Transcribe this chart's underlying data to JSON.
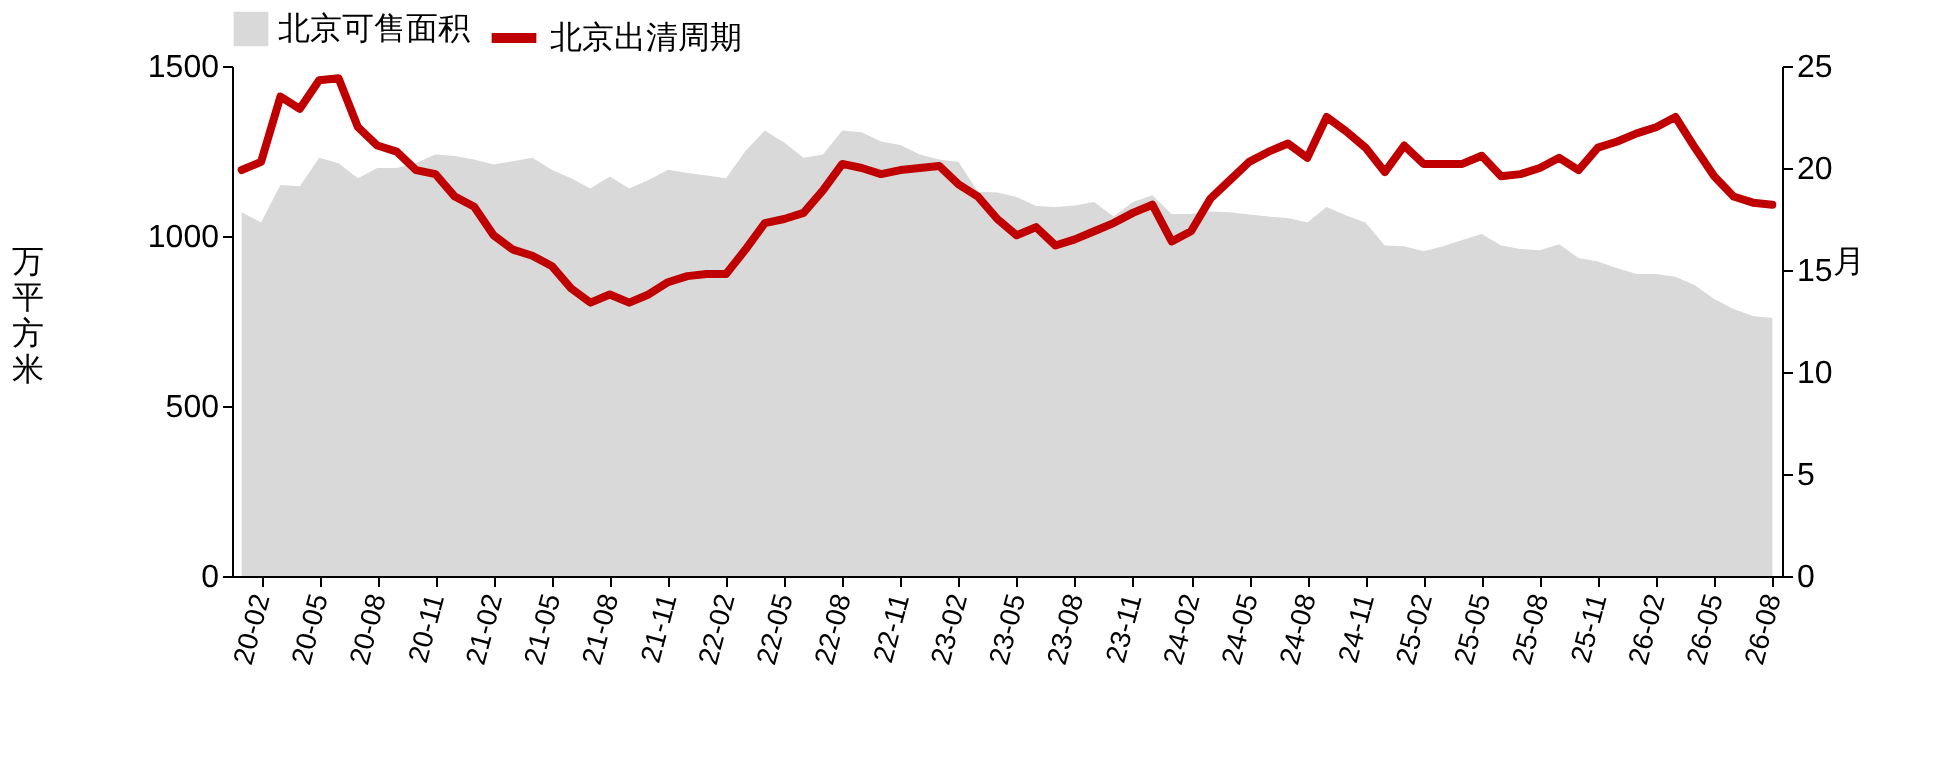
{
  "chart_data": {
    "type": "area",
    "categories": [
      null,
      "20-02",
      null,
      null,
      "20-05",
      null,
      null,
      "20-08",
      null,
      null,
      "20-11",
      null,
      null,
      "21-02",
      null,
      null,
      "21-05",
      null,
      null,
      "21-08",
      null,
      null,
      "21-11",
      null,
      null,
      "22-02",
      null,
      null,
      "22-05",
      null,
      null,
      "22-08",
      null,
      null,
      "22-11",
      null,
      null,
      "23-02",
      null,
      null,
      "23-05",
      null,
      null,
      "23-08",
      null,
      null,
      "23-11",
      null,
      null,
      "24-02",
      null,
      null,
      "24-05",
      null,
      null,
      "24-08",
      null,
      null,
      "24-11",
      null,
      null,
      "25-02",
      null,
      null,
      "25-05",
      null,
      null,
      "25-08",
      null,
      null,
      "25-11",
      null,
      null,
      "26-02",
      null,
      null,
      "26-05",
      null,
      null,
      "26-08"
    ],
    "series": [
      {
        "name": "北京可售面积",
        "color": "#d9d9d9",
        "values": [
          1070,
          1040,
          1150,
          1146,
          1230,
          1214,
          1170,
          1200,
          1200,
          1215,
          1240,
          1235,
          1225,
          1210,
          1220,
          1230,
          1195,
          1170,
          1140,
          1175,
          1140,
          1165,
          1195,
          1185,
          1178,
          1170,
          1250,
          1310,
          1275,
          1230,
          1240,
          1310,
          1305,
          1278,
          1268,
          1240,
          1225,
          1218,
          1130,
          1128,
          1115,
          1088,
          1085,
          1090,
          1100,
          1057,
          1100,
          1120,
          1065,
          1065,
          1072,
          1070,
          1063,
          1057,
          1053,
          1040,
          1085,
          1060,
          1040,
          972,
          970,
          955,
          970,
          988,
          1006,
          972,
          962,
          958,
          976,
          935,
          925,
          905,
          888,
          888,
          880,
          855,
          815,
          785,
          765,
          759
        ]
      },
      {
        "name": "北京出清周期",
        "type": "line",
        "axis": "y2",
        "color": "#c00000",
        "values": [
          19.9,
          20.3,
          23.5,
          22.9,
          24.3,
          24.4,
          22.0,
          21.1,
          20.8,
          19.9,
          19.7,
          18.6,
          18.1,
          16.7,
          16.0,
          15.7,
          15.2,
          14.1,
          13.4,
          13.8,
          13.4,
          13.8,
          14.4,
          14.7,
          14.8,
          14.8,
          16.0,
          17.3,
          17.5,
          17.8,
          18.9,
          20.2,
          20.0,
          19.7,
          19.9,
          20.0,
          20.1,
          19.2,
          18.6,
          17.5,
          16.7,
          17.1,
          16.2,
          16.5,
          16.9,
          17.3,
          17.8,
          18.2,
          16.4,
          16.9,
          18.5,
          19.4,
          20.3,
          20.8,
          21.2,
          20.5,
          22.5,
          21.8,
          21.0,
          19.8,
          21.1,
          20.2,
          20.2,
          20.2,
          20.6,
          19.6,
          19.7,
          20.0,
          20.5,
          19.9,
          21.0,
          21.3,
          21.7,
          22.0,
          22.5,
          21.0,
          19.6,
          18.6,
          18.3,
          18.2
        ]
      }
    ],
    "ylabel": "万平方米",
    "y2label": "月",
    "ylim": [
      0,
      1500
    ],
    "yticks": [
      0,
      500,
      1000,
      1500
    ],
    "y2lim": [
      0,
      25
    ],
    "y2ticks": [
      0,
      5,
      10,
      15,
      20,
      25
    ],
    "legend": "top",
    "grid": false
  }
}
